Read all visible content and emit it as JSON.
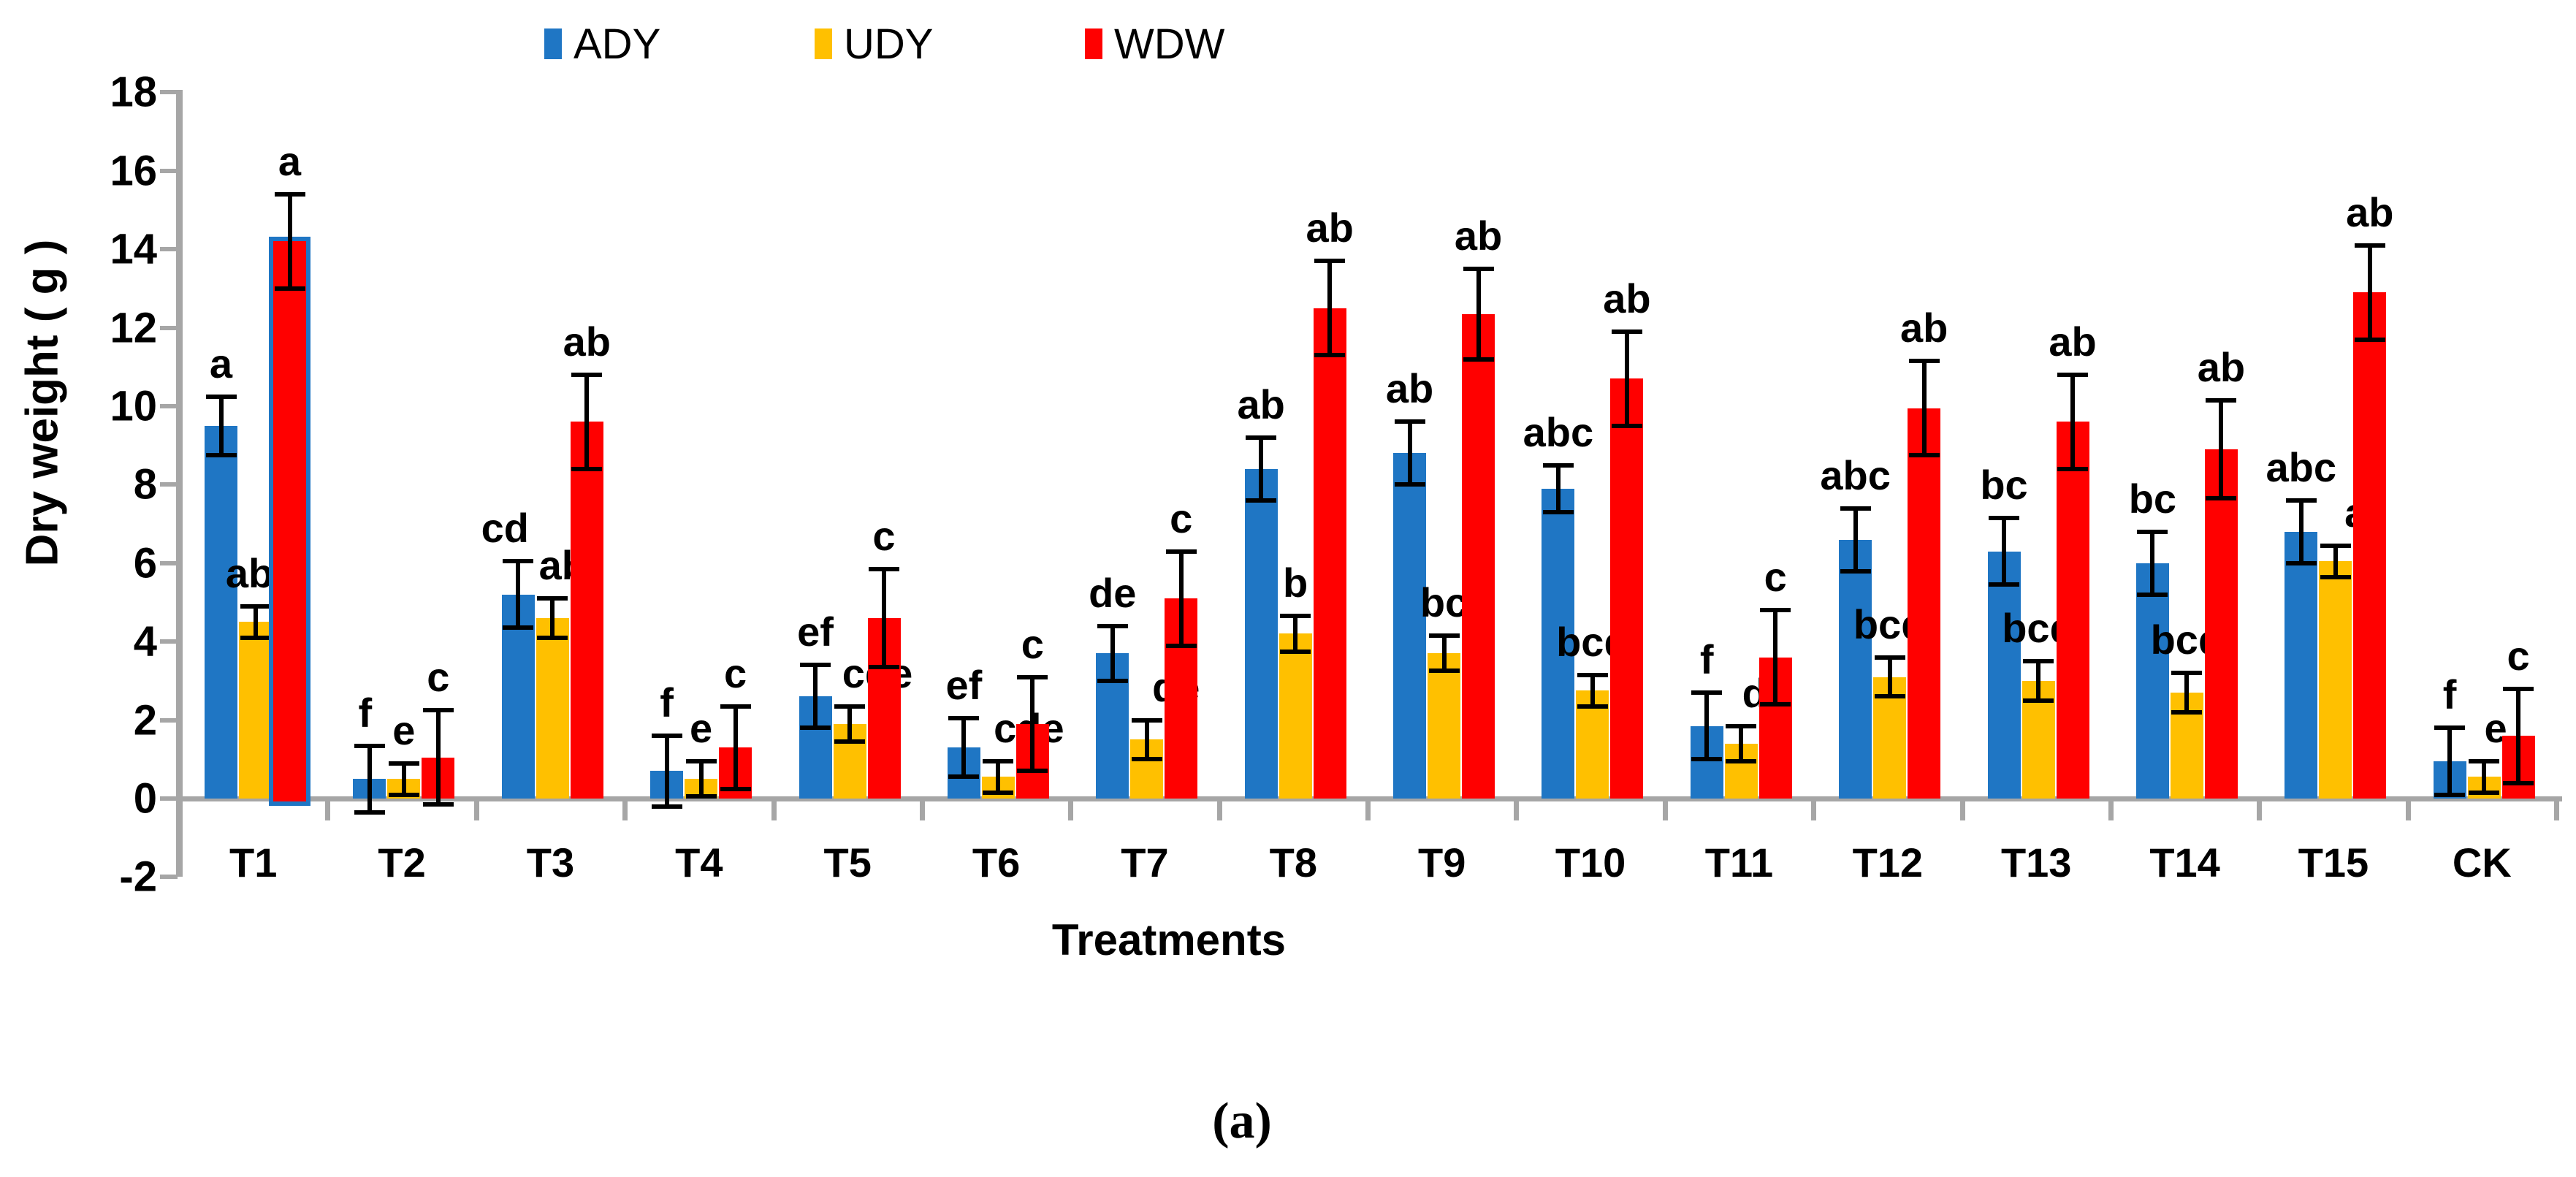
{
  "chart_data": {
    "type": "bar",
    "title": "",
    "xlabel": "Treatments",
    "ylabel": "Dry weight ( g )",
    "caption": "(a)",
    "ylim": [
      -2,
      18
    ],
    "yticks": [
      18,
      16,
      14,
      12,
      10,
      8,
      6,
      4,
      2,
      0,
      -2
    ],
    "grid": false,
    "legend_position": "top",
    "axis_color": "#a6a6a6",
    "error_bar_color": "#000000",
    "categories": [
      "T1",
      "T2",
      "T3",
      "T4",
      "T5",
      "T6",
      "T7",
      "T8",
      "T9",
      "T10",
      "T11",
      "T12",
      "T13",
      "T14",
      "T15",
      "CK"
    ],
    "series": [
      {
        "name": "ADY",
        "color": "#1f76c4",
        "values": [
          9.5,
          0.5,
          5.2,
          0.7,
          2.6,
          1.3,
          3.7,
          8.4,
          8.8,
          7.9,
          1.85,
          6.6,
          6.3,
          6.0,
          6.8,
          0.95
        ],
        "errors": [
          0.75,
          0.85,
          0.85,
          0.9,
          0.8,
          0.75,
          0.7,
          0.8,
          0.8,
          0.6,
          0.85,
          0.8,
          0.85,
          0.8,
          0.8,
          0.85
        ],
        "letters": [
          "a",
          "f",
          "cd",
          "f",
          "ef",
          "ef",
          "de",
          "ab",
          "ab",
          "abc",
          "f",
          "abc",
          "bc",
          "bc",
          "abc",
          "f"
        ]
      },
      {
        "name": "UDY",
        "color": "#ffc000",
        "values": [
          4.5,
          0.5,
          4.6,
          0.5,
          1.9,
          0.55,
          1.5,
          4.2,
          3.7,
          2.75,
          1.4,
          3.1,
          3.0,
          2.7,
          6.05,
          0.55
        ],
        "errors": [
          0.4,
          0.4,
          0.5,
          0.45,
          0.45,
          0.4,
          0.5,
          0.45,
          0.45,
          0.4,
          0.45,
          0.5,
          0.5,
          0.5,
          0.4,
          0.4
        ],
        "letters": [
          "ab",
          "e",
          "ab",
          "e",
          "cde",
          "cde",
          "de",
          "b",
          "bc",
          "bcd",
          "de",
          "bcd",
          "bcd",
          "bcd",
          "a",
          "e"
        ]
      },
      {
        "name": "WDW",
        "color": "#ff0000",
        "values": [
          14.2,
          1.05,
          9.6,
          1.3,
          4.6,
          1.9,
          5.1,
          12.5,
          12.35,
          10.7,
          3.6,
          9.95,
          9.6,
          8.9,
          12.9,
          1.6
        ],
        "errors": [
          1.2,
          1.2,
          1.2,
          1.05,
          1.25,
          1.2,
          1.2,
          1.2,
          1.15,
          1.2,
          1.2,
          1.2,
          1.2,
          1.25,
          1.2,
          1.2
        ],
        "letters": [
          "a",
          "c",
          "ab",
          "c",
          "c",
          "c",
          "c",
          "ab",
          "ab",
          "ab",
          "c",
          "ab",
          "ab",
          "ab",
          "ab",
          "c"
        ],
        "highlight": {
          "category": "T1",
          "border_color": "#1f76c4",
          "border_width": 6
        }
      }
    ],
    "letter_offsets": {
      "ADY:T2": -6,
      "ADY:T3": -18,
      "UDY:T1": -8,
      "UDY:T3": 14,
      "UDY:T5": 38,
      "UDY:T6": 42,
      "UDY:T7": 40,
      "UDY:T11": 34,
      "UDY:T15": 28,
      "UDY:CK": 16
    }
  }
}
